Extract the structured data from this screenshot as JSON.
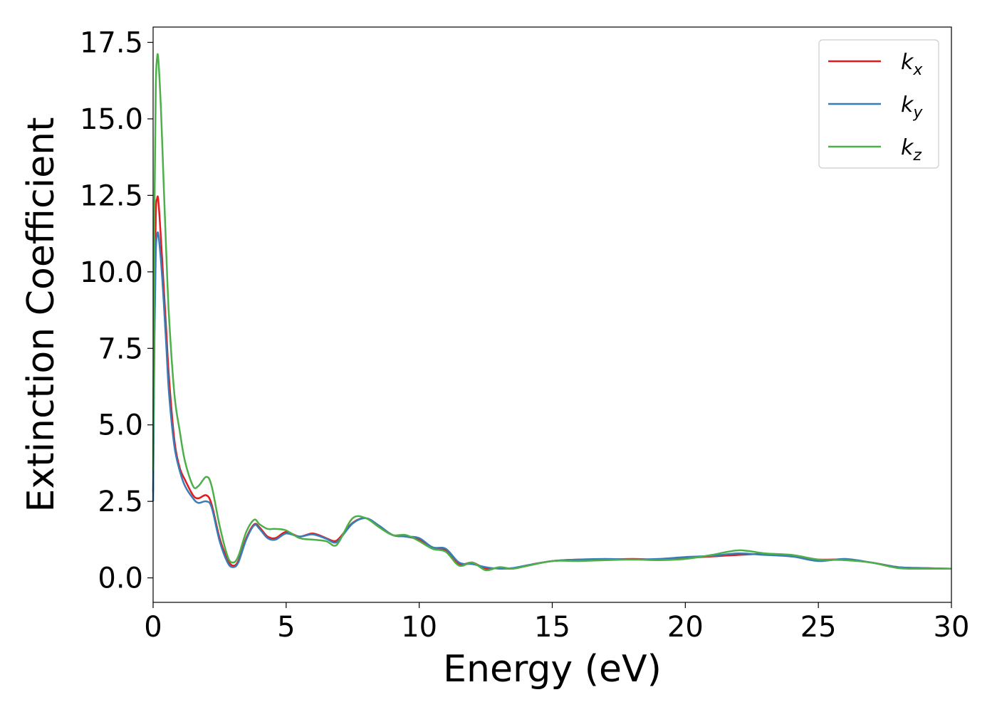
{
  "chart_data": {
    "type": "line",
    "title": "",
    "xlabel": "Energy (eV)",
    "ylabel": "Extinction Coefficient",
    "xlim": [
      0,
      30
    ],
    "ylim": [
      -0.8,
      18.0
    ],
    "xticks": [
      0,
      5,
      10,
      15,
      20,
      25,
      30
    ],
    "yticks": [
      0.0,
      2.5,
      5.0,
      7.5,
      10.0,
      12.5,
      15.0,
      17.5
    ],
    "xtick_labels": [
      "0",
      "5",
      "10",
      "15",
      "20",
      "25",
      "30"
    ],
    "ytick_labels": [
      "0.0",
      "2.5",
      "5.0",
      "7.5",
      "10.0",
      "12.5",
      "15.0",
      "17.5"
    ],
    "grid": false,
    "legend": "top-right",
    "series": [
      {
        "name": "k_x",
        "label_main": "k",
        "label_sub": "x",
        "color": "#e41a1c",
        "x": [
          0,
          0.05,
          0.1,
          0.15,
          0.2,
          0.3,
          0.4,
          0.5,
          0.6,
          0.8,
          1.0,
          1.2,
          1.5,
          1.7,
          2.0,
          2.2,
          2.5,
          2.8,
          3.0,
          3.2,
          3.5,
          3.8,
          4.0,
          4.3,
          4.6,
          5.0,
          5.5,
          6.0,
          6.5,
          6.8,
          7.0,
          7.5,
          8.0,
          8.5,
          9.0,
          9.5,
          10.0,
          10.5,
          11.0,
          11.5,
          12.0,
          12.5,
          13.0,
          13.5,
          14.0,
          15.0,
          16.0,
          17.0,
          18.0,
          19.0,
          20.0,
          21.0,
          22.0,
          23.0,
          24.0,
          25.0,
          26.0,
          27.0,
          28.0,
          29.0,
          30.0
        ],
        "y": [
          2.8,
          8.5,
          11.8,
          12.4,
          12.3,
          11.0,
          9.5,
          8.0,
          6.5,
          4.5,
          3.6,
          3.2,
          2.7,
          2.6,
          2.7,
          2.4,
          1.3,
          0.6,
          0.4,
          0.55,
          1.3,
          1.75,
          1.65,
          1.35,
          1.3,
          1.5,
          1.35,
          1.45,
          1.3,
          1.2,
          1.3,
          1.8,
          1.95,
          1.7,
          1.4,
          1.35,
          1.25,
          1.0,
          0.9,
          0.45,
          0.5,
          0.3,
          0.33,
          0.3,
          0.4,
          0.55,
          0.6,
          0.6,
          0.62,
          0.6,
          0.65,
          0.7,
          0.75,
          0.78,
          0.7,
          0.6,
          0.6,
          0.5,
          0.35,
          0.32,
          0.3
        ]
      },
      {
        "name": "k_y",
        "label_main": "k",
        "label_sub": "y",
        "color": "#377eb8",
        "x": [
          0,
          0.05,
          0.1,
          0.15,
          0.2,
          0.3,
          0.4,
          0.5,
          0.6,
          0.8,
          1.0,
          1.2,
          1.5,
          1.7,
          2.0,
          2.2,
          2.5,
          2.8,
          3.0,
          3.2,
          3.5,
          3.8,
          4.0,
          4.3,
          4.6,
          5.0,
          5.5,
          6.0,
          6.5,
          6.8,
          7.0,
          7.5,
          8.0,
          8.5,
          9.0,
          9.5,
          10.0,
          10.5,
          11.0,
          11.5,
          12.0,
          12.5,
          13.0,
          13.5,
          14.0,
          15.0,
          16.0,
          17.0,
          18.0,
          19.0,
          20.0,
          21.0,
          22.0,
          23.0,
          24.0,
          25.0,
          26.0,
          27.0,
          28.0,
          29.0,
          30.0
        ],
        "y": [
          2.5,
          7.8,
          10.6,
          11.2,
          11.2,
          10.3,
          9.0,
          7.5,
          6.0,
          4.3,
          3.5,
          3.0,
          2.6,
          2.45,
          2.5,
          2.3,
          1.2,
          0.5,
          0.35,
          0.5,
          1.25,
          1.72,
          1.6,
          1.3,
          1.25,
          1.45,
          1.35,
          1.42,
          1.28,
          1.15,
          1.25,
          1.78,
          1.95,
          1.7,
          1.4,
          1.35,
          1.3,
          1.0,
          0.95,
          0.5,
          0.45,
          0.35,
          0.3,
          0.32,
          0.4,
          0.55,
          0.6,
          0.62,
          0.6,
          0.62,
          0.68,
          0.72,
          0.8,
          0.75,
          0.7,
          0.55,
          0.62,
          0.5,
          0.35,
          0.32,
          0.3
        ]
      },
      {
        "name": "k_z",
        "label_main": "k",
        "label_sub": "z",
        "color": "#4daf4a",
        "x": [
          0,
          0.05,
          0.1,
          0.15,
          0.2,
          0.3,
          0.4,
          0.5,
          0.6,
          0.8,
          1.0,
          1.2,
          1.5,
          1.7,
          2.0,
          2.2,
          2.5,
          2.8,
          3.0,
          3.2,
          3.5,
          3.8,
          4.0,
          4.3,
          4.6,
          5.0,
          5.5,
          6.0,
          6.5,
          6.8,
          7.0,
          7.5,
          8.0,
          8.5,
          9.0,
          9.5,
          10.0,
          10.5,
          11.0,
          11.5,
          12.0,
          12.5,
          13.0,
          13.5,
          14.0,
          15.0,
          16.0,
          17.0,
          18.0,
          19.0,
          20.0,
          21.0,
          22.0,
          23.0,
          24.0,
          25.0,
          26.0,
          27.0,
          28.0,
          29.0,
          30.0
        ],
        "y": [
          3.5,
          12.0,
          16.0,
          17.0,
          16.9,
          15.2,
          12.8,
          10.5,
          8.5,
          6.0,
          4.8,
          3.8,
          3.0,
          3.0,
          3.3,
          3.0,
          1.7,
          0.7,
          0.5,
          0.7,
          1.5,
          1.9,
          1.75,
          1.6,
          1.6,
          1.55,
          1.3,
          1.25,
          1.2,
          1.05,
          1.2,
          1.95,
          1.95,
          1.65,
          1.4,
          1.4,
          1.2,
          0.95,
          0.85,
          0.4,
          0.5,
          0.25,
          0.35,
          0.3,
          0.38,
          0.55,
          0.55,
          0.58,
          0.6,
          0.58,
          0.62,
          0.75,
          0.9,
          0.8,
          0.75,
          0.6,
          0.58,
          0.5,
          0.32,
          0.3,
          0.3
        ]
      }
    ]
  }
}
